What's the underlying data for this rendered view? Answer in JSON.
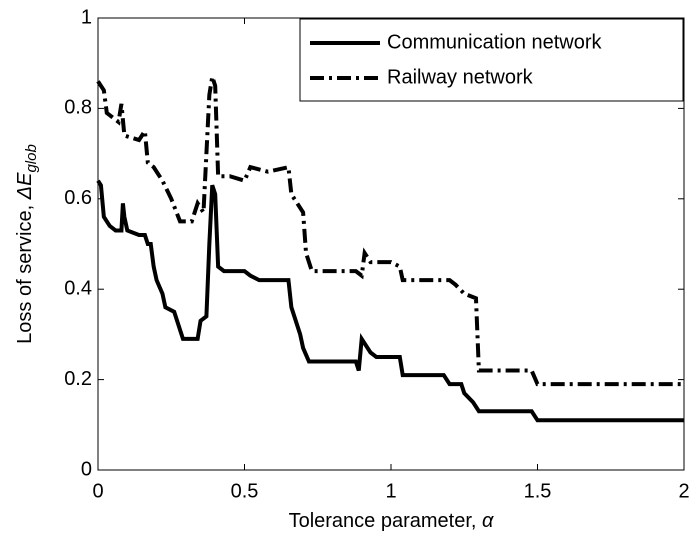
{
  "chart_data": {
    "type": "line",
    "xlabel": "Tolerance parameter, ",
    "xlabel_symbol": "α",
    "ylabel": "Loss of service,  ",
    "ylabel_symbol": "ΔE",
    "ylabel_sub": "glob",
    "xlim": [
      0,
      2
    ],
    "xticks": [
      0,
      0.5,
      1,
      1.5,
      2
    ],
    "ylim": [
      0,
      1
    ],
    "yticks": [
      0,
      0.2,
      0.4,
      0.6,
      0.8,
      1
    ],
    "legend": "upper right",
    "series": [
      {
        "name": "Communication network",
        "color": "#000000",
        "linestyle": "solid",
        "x": [
          0,
          0.01,
          0.02,
          0.04,
          0.06,
          0.08,
          0.085,
          0.09,
          0.1,
          0.14,
          0.16,
          0.17,
          0.18,
          0.19,
          0.2,
          0.22,
          0.23,
          0.26,
          0.28,
          0.29,
          0.34,
          0.35,
          0.37,
          0.38,
          0.39,
          0.4,
          0.41,
          0.43,
          0.5,
          0.52,
          0.55,
          0.65,
          0.66,
          0.69,
          0.7,
          0.72,
          0.8,
          0.88,
          0.89,
          0.9,
          0.91,
          0.93,
          0.95,
          1.0,
          1.03,
          1.04,
          1.18,
          1.2,
          1.24,
          1.25,
          1.28,
          1.3,
          1.48,
          1.5,
          2
        ],
        "values": [
          0.64,
          0.63,
          0.56,
          0.54,
          0.53,
          0.53,
          0.59,
          0.56,
          0.53,
          0.52,
          0.52,
          0.5,
          0.5,
          0.45,
          0.42,
          0.39,
          0.36,
          0.35,
          0.31,
          0.29,
          0.29,
          0.33,
          0.34,
          0.5,
          0.63,
          0.61,
          0.45,
          0.44,
          0.44,
          0.43,
          0.42,
          0.42,
          0.36,
          0.3,
          0.27,
          0.24,
          0.24,
          0.24,
          0.22,
          0.29,
          0.28,
          0.26,
          0.25,
          0.25,
          0.25,
          0.21,
          0.21,
          0.19,
          0.19,
          0.17,
          0.15,
          0.13,
          0.13,
          0.11,
          0.11
        ]
      },
      {
        "name": "Railway network",
        "color": "#000000",
        "linestyle": "dashdot",
        "x": [
          0,
          0.02,
          0.03,
          0.05,
          0.07,
          0.08,
          0.09,
          0.14,
          0.16,
          0.17,
          0.19,
          0.22,
          0.25,
          0.28,
          0.32,
          0.34,
          0.36,
          0.38,
          0.39,
          0.4,
          0.41,
          0.45,
          0.5,
          0.52,
          0.58,
          0.65,
          0.66,
          0.7,
          0.71,
          0.73,
          0.88,
          0.9,
          0.91,
          0.93,
          1.0,
          1.03,
          1.04,
          1.2,
          1.22,
          1.25,
          1.29,
          1.3,
          1.48,
          1.5,
          2
        ],
        "values": [
          0.86,
          0.84,
          0.79,
          0.78,
          0.77,
          0.81,
          0.74,
          0.73,
          0.75,
          0.68,
          0.67,
          0.64,
          0.6,
          0.55,
          0.55,
          0.59,
          0.57,
          0.83,
          0.87,
          0.85,
          0.65,
          0.65,
          0.64,
          0.67,
          0.66,
          0.67,
          0.61,
          0.57,
          0.48,
          0.44,
          0.44,
          0.43,
          0.48,
          0.46,
          0.46,
          0.45,
          0.42,
          0.42,
          0.41,
          0.39,
          0.38,
          0.22,
          0.22,
          0.19,
          0.19
        ]
      }
    ]
  }
}
